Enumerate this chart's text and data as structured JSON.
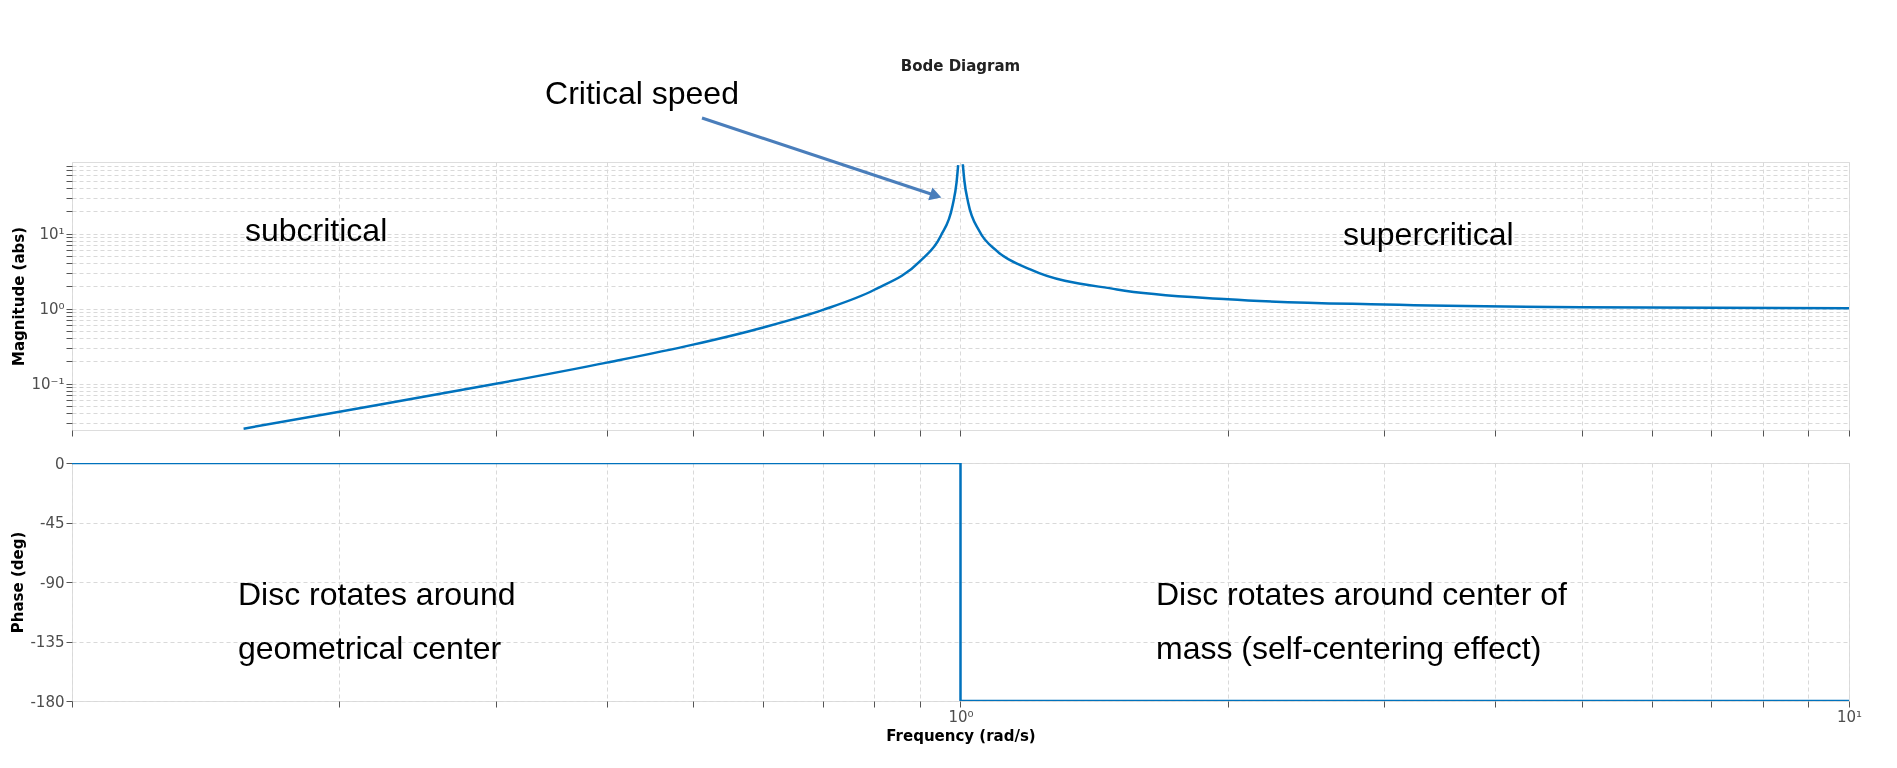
{
  "chart_data": [
    {
      "type": "line",
      "title": "Bode Diagram",
      "ylabel": "Magnitude (abs)",
      "log": "xy",
      "grid": true,
      "tick_labels": "y",
      "xlim": [
        0.1,
        10
      ],
      "ylim": [
        0.024,
        90
      ],
      "xticks": [
        0.1,
        {
          "value": 0.2,
          "label": null
        },
        {
          "value": 0.3,
          "label": null
        },
        {
          "value": 0.4,
          "label": null
        },
        {
          "value": 0.5,
          "label": null
        },
        {
          "value": 0.6,
          "label": null
        },
        {
          "value": 0.7,
          "label": null
        },
        {
          "value": 0.8,
          "label": null
        },
        {
          "value": 0.9,
          "label": null
        },
        1,
        {
          "value": 2,
          "label": null
        },
        {
          "value": 3,
          "label": null
        },
        {
          "value": 4,
          "label": null
        },
        {
          "value": 5,
          "label": null
        },
        {
          "value": 6,
          "label": null
        },
        {
          "value": 7,
          "label": null
        },
        {
          "value": 8,
          "label": null
        },
        {
          "value": 9,
          "label": null
        },
        10
      ],
      "yticks": [
        {
          "value": 0.03,
          "label": null
        },
        {
          "value": 0.04,
          "label": null
        },
        {
          "value": 0.05,
          "label": null
        },
        {
          "value": 0.06,
          "label": null
        },
        {
          "value": 0.07,
          "label": null
        },
        {
          "value": 0.08,
          "label": null
        },
        {
          "value": 0.09,
          "label": null
        },
        {
          "value": 0.1,
          "label": "10⁻¹"
        },
        {
          "value": 0.2,
          "label": null
        },
        {
          "value": 0.3,
          "label": null
        },
        {
          "value": 0.4,
          "label": null
        },
        {
          "value": 0.5,
          "label": null
        },
        {
          "value": 0.6,
          "label": null
        },
        {
          "value": 0.7,
          "label": null
        },
        {
          "value": 0.8,
          "label": null
        },
        {
          "value": 0.9,
          "label": null
        },
        {
          "value": 1,
          "label": "10⁰"
        },
        {
          "value": 2,
          "label": null
        },
        {
          "value": 3,
          "label": null
        },
        {
          "value": 4,
          "label": null
        },
        {
          "value": 5,
          "label": null
        },
        {
          "value": 6,
          "label": null
        },
        {
          "value": 7,
          "label": null
        },
        {
          "value": 8,
          "label": null
        },
        {
          "value": 9,
          "label": null
        },
        {
          "value": 10,
          "label": "10¹"
        },
        {
          "value": 20,
          "label": null
        },
        {
          "value": 30,
          "label": null
        },
        {
          "value": 40,
          "label": null
        },
        {
          "value": 50,
          "label": null
        },
        {
          "value": 60,
          "label": null
        },
        {
          "value": 70,
          "label": null
        },
        {
          "value": 80,
          "label": null
        }
      ],
      "series": [
        {
          "color": "#0072bd",
          "x": [
            0.156,
            0.2,
            0.3,
            0.4,
            0.5,
            0.6,
            0.7,
            0.8,
            0.9,
            0.95,
            0.98,
            0.99,
            0.994,
            1,
            1.006,
            1.01,
            1.02,
            1.05,
            1.1,
            1.2,
            1.5,
            2,
            3,
            5,
            10
          ],
          "values": [
            0.025,
            0.042,
            0.099,
            0.19,
            0.33,
            0.56,
            0.96,
            1.78,
            4.26,
            9.3,
            24,
            49,
            82,
            null,
            84,
            51,
            26,
            10.8,
            5.8,
            3.3,
            1.8,
            1.33,
            1.13,
            1.04,
            1.01
          ]
        }
      ],
      "annotations": [
        "Critical speed",
        "subcritical",
        "supercritical"
      ]
    },
    {
      "type": "line",
      "ylabel": "Phase (deg)",
      "xlabel": "Frequency  (rad/s)",
      "log": "x",
      "grid": true,
      "xlim": [
        0.1,
        10
      ],
      "ylim": [
        -180,
        0
      ],
      "xticks": [
        {
          "value": 0.1,
          "label": null
        },
        {
          "value": 0.2,
          "label": null
        },
        {
          "value": 0.3,
          "label": null
        },
        {
          "value": 0.4,
          "label": null
        },
        {
          "value": 0.5,
          "label": null
        },
        {
          "value": 0.6,
          "label": null
        },
        {
          "value": 0.7,
          "label": null
        },
        {
          "value": 0.8,
          "label": null
        },
        {
          "value": 0.9,
          "label": null
        },
        {
          "value": 1,
          "label": "10⁰"
        },
        {
          "value": 2,
          "label": null
        },
        {
          "value": 3,
          "label": null
        },
        {
          "value": 4,
          "label": null
        },
        {
          "value": 5,
          "label": null
        },
        {
          "value": 6,
          "label": null
        },
        {
          "value": 7,
          "label": null
        },
        {
          "value": 8,
          "label": null
        },
        {
          "value": 9,
          "label": null
        },
        {
          "value": 10,
          "label": "10¹"
        }
      ],
      "yticks": [
        0,
        -45,
        -90,
        -135,
        -180
      ],
      "series": [
        {
          "color": "#0072bd",
          "x": [
            0.1,
            1,
            1,
            10
          ],
          "values": [
            0,
            0,
            -180,
            -180
          ]
        }
      ],
      "annotations": [
        "Disc rotates around\ngeometrical center",
        "Disc rotates around center of\nmass (self-centering effect)"
      ]
    }
  ]
}
